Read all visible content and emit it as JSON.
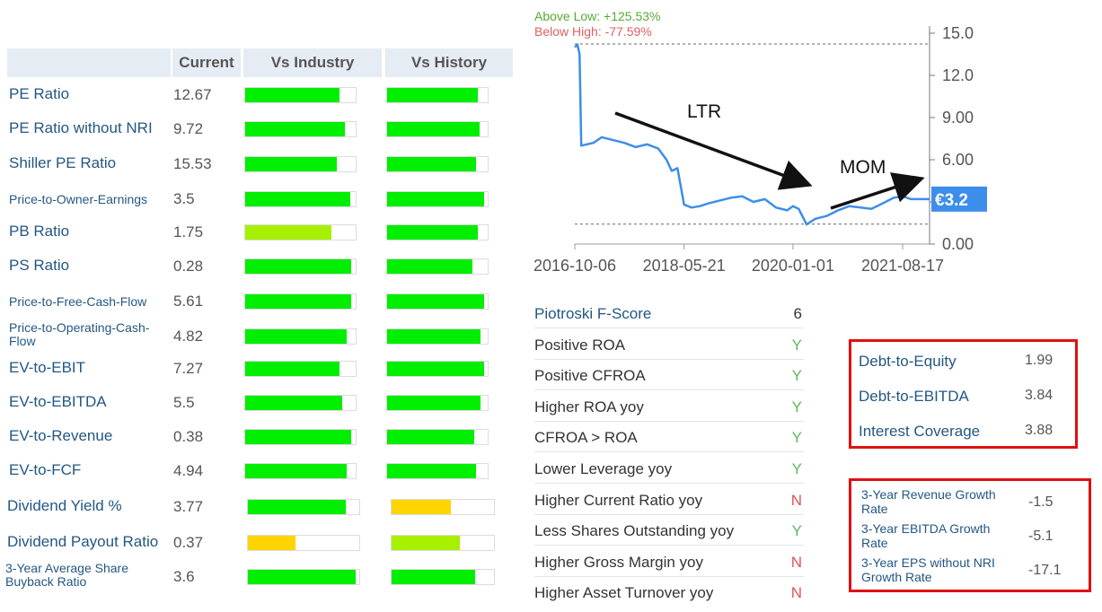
{
  "valuation": {
    "headers": {
      "current": "Current",
      "industry": "Vs Industry",
      "history": "Vs History"
    },
    "rows": [
      {
        "name": "PE Ratio",
        "value": "12.67",
        "industry": 0.85,
        "history": 0.9,
        "industry_color": "#00ee00",
        "history_color": "#00ee00"
      },
      {
        "name": "PE Ratio without NRI",
        "value": "9.72",
        "industry": 0.9,
        "history": 0.92,
        "industry_color": "#00ee00",
        "history_color": "#00ee00"
      },
      {
        "name": "Shiller PE Ratio",
        "value": "15.53",
        "industry": 0.83,
        "history": 0.88,
        "industry_color": "#00ee00",
        "history_color": "#00ee00"
      },
      {
        "name": "Price-to-Owner-Earnings",
        "value": "3.5",
        "industry": 0.95,
        "history": 0.96,
        "industry_color": "#00ee00",
        "history_color": "#00ee00"
      },
      {
        "name": "PB Ratio",
        "value": "1.75",
        "industry": 0.78,
        "history": 0.9,
        "industry_color": "#a6f000",
        "history_color": "#00ee00"
      },
      {
        "name": "PS Ratio",
        "value": "0.28",
        "industry": 0.96,
        "history": 0.85,
        "industry_color": "#00ee00",
        "history_color": "#00ee00"
      },
      {
        "name": "Price-to-Free-Cash-Flow",
        "value": "5.61",
        "industry": 0.96,
        "history": 0.96,
        "industry_color": "#00ee00",
        "history_color": "#00ee00"
      },
      {
        "name": "Price-to-Operating-Cash-Flow",
        "value": "4.82",
        "industry": 0.92,
        "history": 0.93,
        "industry_color": "#00ee00",
        "history_color": "#00ee00"
      },
      {
        "name": "EV-to-EBIT",
        "value": "7.27",
        "industry": 0.85,
        "history": 0.96,
        "industry_color": "#00ee00",
        "history_color": "#00ee00"
      },
      {
        "name": "EV-to-EBITDA",
        "value": "5.5",
        "industry": 0.88,
        "history": 0.93,
        "industry_color": "#00ee00",
        "history_color": "#00ee00"
      },
      {
        "name": "EV-to-Revenue",
        "value": "0.38",
        "industry": 0.96,
        "history": 0.87,
        "industry_color": "#00ee00",
        "history_color": "#00ee00"
      },
      {
        "name": "EV-to-FCF",
        "value": "4.94",
        "industry": 0.92,
        "history": 0.88,
        "industry_color": "#00ee00",
        "history_color": "#00ee00"
      },
      {
        "name": "Dividend Yield %",
        "value": "3.77",
        "industry": 0.88,
        "history": 0.58,
        "industry_color": "#00ee00",
        "history_color": "#ffd400"
      },
      {
        "name": "Dividend Payout Ratio",
        "value": "0.37",
        "industry": 0.43,
        "history": 0.67,
        "industry_color": "#ffd400",
        "history_color": "#a6f000"
      },
      {
        "name": "3-Year Average Share Buyback Ratio",
        "value": "3.6",
        "industry": 0.97,
        "history": 0.82,
        "industry_color": "#00ee00",
        "history_color": "#00ee00"
      }
    ]
  },
  "price_chart": {
    "above_low": "Above Low: +125.53%",
    "below_high": "Below High: -77.59%",
    "current_price": "€3.2",
    "y_ticks": [
      "15.0",
      "12.0",
      "9.00",
      "6.00",
      "3.00",
      "0.00"
    ],
    "x_ticks": [
      "2016-10-06",
      "2018-05-21",
      "2020-01-01",
      "2021-08-17"
    ],
    "annotation_ltr": "LTR",
    "annotation_mom": "MOM",
    "colors": {
      "line": "#3d8eea",
      "above": "#55aa33",
      "below": "#e06060",
      "badge": "#3d8eea"
    }
  },
  "chart_data": {
    "type": "line",
    "x": [
      "2016-10-06",
      "2016-10-20",
      "2016-11-01",
      "2016-11-10",
      "2017-01-15",
      "2017-03-01",
      "2017-05-01",
      "2017-07-01",
      "2017-09-01",
      "2017-11-01",
      "2018-01-01",
      "2018-02-15",
      "2018-03-15",
      "2018-04-15",
      "2018-05-21",
      "2018-07-01",
      "2018-08-15",
      "2018-10-01",
      "2018-12-01",
      "2019-02-01",
      "2019-04-01",
      "2019-06-01",
      "2019-08-01",
      "2019-10-01",
      "2019-12-01",
      "2020-01-01",
      "2020-02-01",
      "2020-03-15",
      "2020-05-01",
      "2020-07-01",
      "2020-09-01",
      "2020-11-01",
      "2021-01-01",
      "2021-03-01",
      "2021-05-01",
      "2021-07-01",
      "2021-08-17",
      "2021-10-01",
      "2022-01-10"
    ],
    "series": [
      {
        "values": [
          14.0,
          14.2,
          13.5,
          7.0,
          7.2,
          7.6,
          7.4,
          7.2,
          6.9,
          7.1,
          6.8,
          6.0,
          5.2,
          5.4,
          2.8,
          2.6,
          2.7,
          2.9,
          3.1,
          3.3,
          3.4,
          3.0,
          3.2,
          2.6,
          2.4,
          2.7,
          2.5,
          1.4,
          1.8,
          2.0,
          2.4,
          2.7,
          2.6,
          2.5,
          2.9,
          3.3,
          3.4,
          3.2,
          3.2
        ]
      }
    ],
    "ylim": [
      0,
      15
    ],
    "y_ticks": [
      "15.0",
      "12.0",
      "9.00",
      "6.00",
      "3.00",
      "0.00"
    ],
    "x_ticks": [
      "2016-10-06",
      "2018-05-21",
      "2020-01-01",
      "2021-08-17"
    ],
    "high": 14.3,
    "low": 1.42,
    "annotations": [
      "LTR",
      "MOM"
    ]
  },
  "fscore": {
    "rows": [
      {
        "label": "Piotroski F-Score",
        "value": "6",
        "kind": "score"
      },
      {
        "label": "Positive ROA",
        "value": "Y"
      },
      {
        "label": "Positive CFROA",
        "value": "Y"
      },
      {
        "label": "Higher ROA yoy",
        "value": "Y"
      },
      {
        "label": "CFROA > ROA",
        "value": "Y"
      },
      {
        "label": "Lower Leverage yoy",
        "value": "Y"
      },
      {
        "label": "Higher Current Ratio yoy",
        "value": "N"
      },
      {
        "label": "Less Shares Outstanding yoy",
        "value": "Y"
      },
      {
        "label": "Higher Gross Margin yoy",
        "value": "N"
      },
      {
        "label": "Higher Asset Turnover yoy",
        "value": "N"
      }
    ],
    "colors": {
      "Y": "#5cb85c",
      "N": "#e05555"
    }
  },
  "debt": {
    "rows": [
      {
        "label": "Debt-to-Equity",
        "value": "1.99"
      },
      {
        "label": "Debt-to-EBITDA",
        "value": "3.84"
      },
      {
        "label": "Interest Coverage",
        "value": "3.88"
      }
    ]
  },
  "growth": {
    "rows": [
      {
        "label": "3-Year Revenue Growth Rate",
        "value": "-1.5"
      },
      {
        "label": "3-Year EBITDA Growth Rate",
        "value": "-5.1"
      },
      {
        "label": "3-Year EPS without NRI Growth Rate",
        "value": "-17.1"
      }
    ]
  }
}
